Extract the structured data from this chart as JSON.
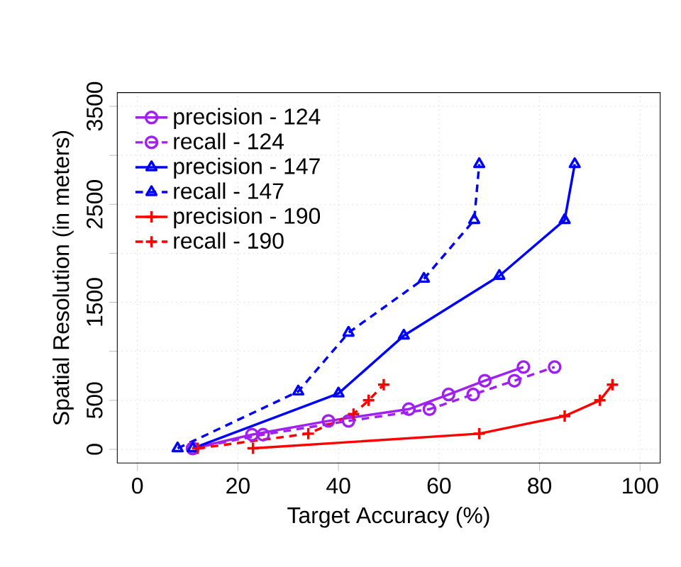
{
  "chart_data": {
    "type": "line",
    "xlabel": "Target Accuracy (%)",
    "ylabel": "Spatial Resolution (in meters)",
    "xlim": [
      -4,
      104
    ],
    "ylim": [
      -140,
      3640
    ],
    "xticks": [
      0,
      20,
      40,
      60,
      80,
      100
    ],
    "yticks": [
      0,
      500,
      {
        "value": 1000,
        "label": null
      },
      1500,
      {
        "value": 2000,
        "label": null
      },
      2500,
      {
        "value": 3000,
        "label": null
      },
      3500
    ],
    "grid": true,
    "legend": "top left",
    "series": [
      {
        "name": "precision - 124",
        "color": "#a020f0",
        "marker": "circle",
        "line_style": "solid",
        "x": [
          11,
          22.8,
          38,
          54,
          61.9,
          69.1,
          76.8
        ],
        "values": [
          10,
          150,
          290,
          410,
          560,
          700,
          840
        ]
      },
      {
        "name": "recall - 124",
        "color": "#a020f0",
        "marker": "circle",
        "line_style": "dashed",
        "x": [
          11,
          25,
          42,
          58.1,
          66.8,
          75,
          83
        ],
        "values": [
          10,
          150,
          290,
          410,
          560,
          700,
          840
        ]
      },
      {
        "name": "precision - 147",
        "color": "#0000ff",
        "marker": "triangle",
        "line_style": "solid",
        "x": [
          11,
          40,
          53,
          72,
          85,
          87
        ],
        "values": [
          10,
          570,
          1160,
          1770,
          2340,
          2910
        ]
      },
      {
        "name": "recall - 147",
        "color": "#0000ff",
        "marker": "triangle",
        "line_style": "dashed",
        "x": [
          8,
          32,
          42,
          57,
          67,
          68
        ],
        "values": [
          10,
          590,
          1190,
          1740,
          2340,
          2910
        ]
      },
      {
        "name": "precision - 190",
        "color": "#ff0000",
        "marker": "cross",
        "line_style": "solid",
        "x": [
          23,
          68,
          85,
          92,
          94.5
        ],
        "values": [
          10,
          160,
          340,
          500,
          660
        ]
      },
      {
        "name": "recall - 190",
        "color": "#ff0000",
        "marker": "cross",
        "line_style": "dashed",
        "x": [
          12,
          34,
          43,
          46,
          49
        ],
        "values": [
          10,
          160,
          360,
          500,
          660
        ]
      }
    ]
  }
}
